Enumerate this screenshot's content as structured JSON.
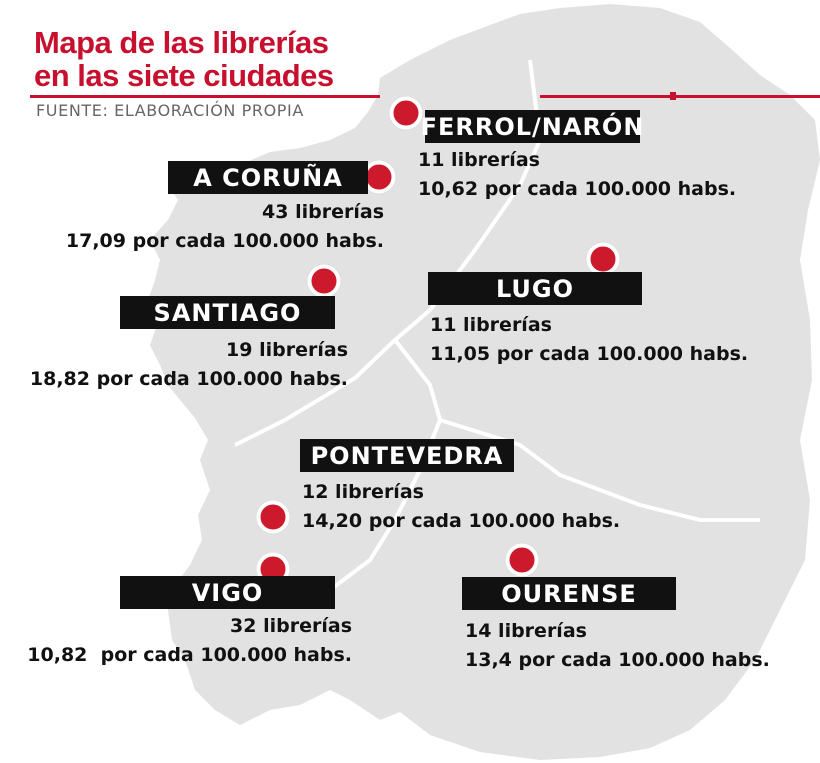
{
  "header": {
    "title_line1": "Mapa de las librerías",
    "title_line2": "en las siete ciudades",
    "source": "FUENTE: ELABORACIÓN PROPIA",
    "accent_color": "#c8102e"
  },
  "map": {
    "land_color": "#e2e2e2",
    "border_color": "#ffffff",
    "marker_color": "#cc1a2c"
  },
  "cities": {
    "ferrol": {
      "name": "FERROL/NARÓN",
      "count": "11 librerías",
      "ratio": "10,62 por cada 100.000 habs."
    },
    "coruna": {
      "name": "A CORUÑA",
      "count": "43 librerías",
      "ratio": "17,09 por cada 100.000 habs."
    },
    "lugo": {
      "name": "LUGO",
      "count": "11 librerías",
      "ratio": "11,05 por cada 100.000 habs."
    },
    "santiago": {
      "name": "SANTIAGO",
      "count": "19 librerías",
      "ratio": "18,82 por cada 100.000 habs."
    },
    "pontevedra": {
      "name": "PONTEVEDRA",
      "count": "12 librerías",
      "ratio": "14,20 por cada 100.000 habs."
    },
    "vigo": {
      "name": "VIGO",
      "count": "32 librerías",
      "ratio": "10,82  por cada 100.000 habs."
    },
    "ourense": {
      "name": "OURENSE",
      "count": "14 librerías",
      "ratio": "13,4 por cada 100.000 habs."
    }
  }
}
